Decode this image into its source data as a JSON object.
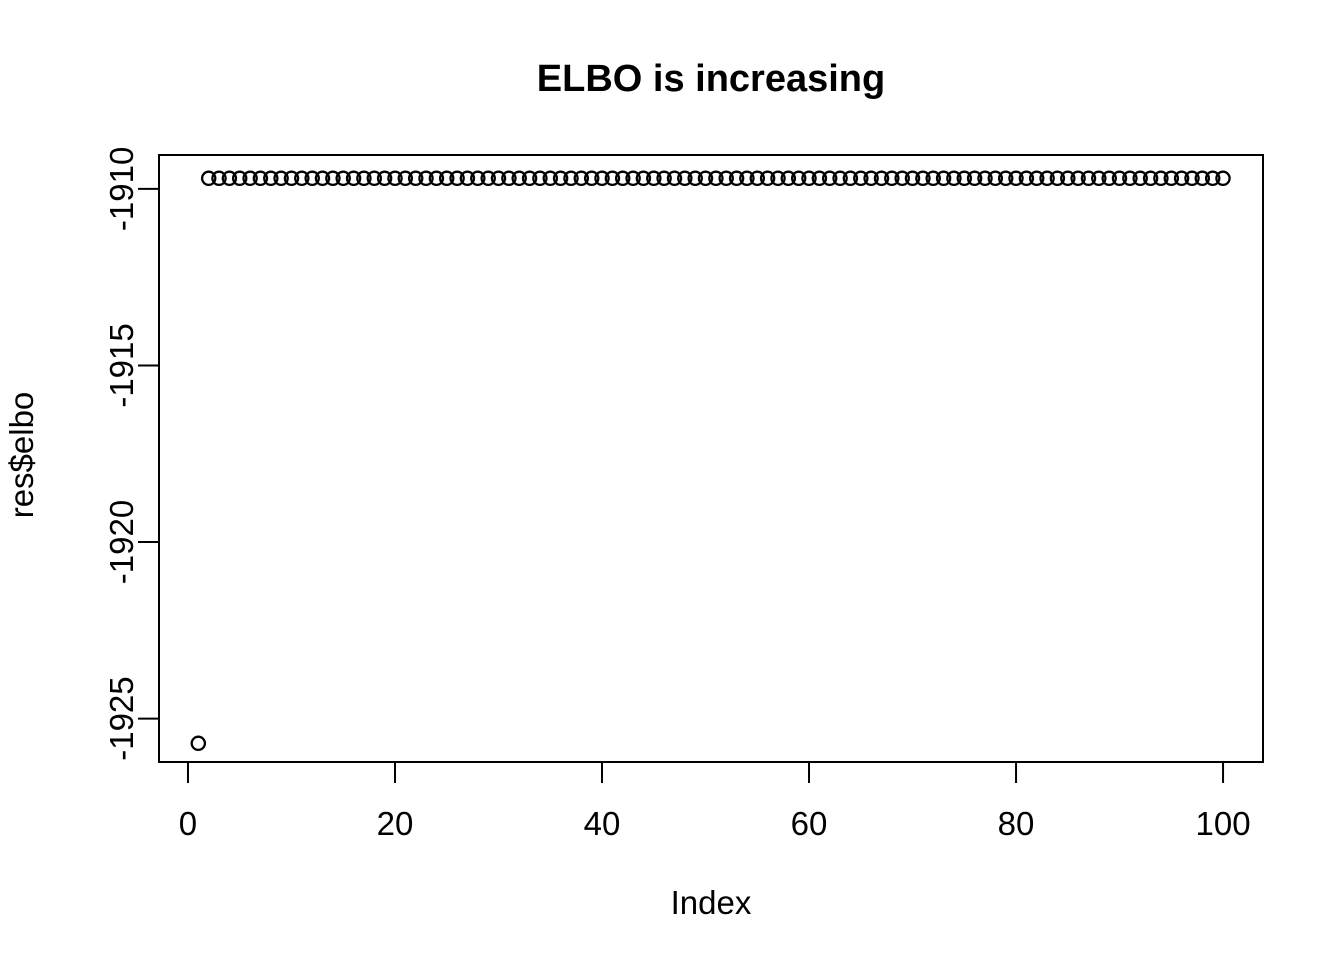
{
  "chart_data": {
    "type": "scatter",
    "title": "ELBO is increasing",
    "xlabel": "Index",
    "ylabel": "res$elbo",
    "marker": "open-circle",
    "grid": false,
    "fg_color": "#000000",
    "bg_color": "#ffffff",
    "x_ticks": [
      0,
      20,
      40,
      60,
      80,
      100
    ],
    "y_ticks": [
      -1910,
      -1915,
      -1920,
      -1925
    ],
    "xlim": [
      -2.8,
      103.86
    ],
    "ylim": [
      -1926.23,
      -1909.04
    ],
    "x": [
      1,
      2,
      3,
      4,
      5,
      6,
      7,
      8,
      9,
      10,
      11,
      12,
      13,
      14,
      15,
      16,
      17,
      18,
      19,
      20,
      21,
      22,
      23,
      24,
      25,
      26,
      27,
      28,
      29,
      30,
      31,
      32,
      33,
      34,
      35,
      36,
      37,
      38,
      39,
      40,
      41,
      42,
      43,
      44,
      45,
      46,
      47,
      48,
      49,
      50,
      51,
      52,
      53,
      54,
      55,
      56,
      57,
      58,
      59,
      60,
      61,
      62,
      63,
      64,
      65,
      66,
      67,
      68,
      69,
      70,
      71,
      72,
      73,
      74,
      75,
      76,
      77,
      78,
      79,
      80,
      81,
      82,
      83,
      84,
      85,
      86,
      87,
      88,
      89,
      90,
      91,
      92,
      93,
      94,
      95,
      96,
      97,
      98,
      99,
      100
    ],
    "y": [
      -1925.7,
      -1909.7,
      -1909.7,
      -1909.7,
      -1909.7,
      -1909.7,
      -1909.7,
      -1909.7,
      -1909.7,
      -1909.7,
      -1909.7,
      -1909.7,
      -1909.7,
      -1909.7,
      -1909.7,
      -1909.7,
      -1909.7,
      -1909.7,
      -1909.7,
      -1909.7,
      -1909.7,
      -1909.7,
      -1909.7,
      -1909.7,
      -1909.7,
      -1909.7,
      -1909.7,
      -1909.7,
      -1909.7,
      -1909.7,
      -1909.7,
      -1909.7,
      -1909.7,
      -1909.7,
      -1909.7,
      -1909.7,
      -1909.7,
      -1909.7,
      -1909.7,
      -1909.7,
      -1909.7,
      -1909.7,
      -1909.7,
      -1909.7,
      -1909.7,
      -1909.7,
      -1909.7,
      -1909.7,
      -1909.7,
      -1909.7,
      -1909.7,
      -1909.7,
      -1909.7,
      -1909.7,
      -1909.7,
      -1909.7,
      -1909.7,
      -1909.7,
      -1909.7,
      -1909.7,
      -1909.7,
      -1909.7,
      -1909.7,
      -1909.7,
      -1909.7,
      -1909.7,
      -1909.7,
      -1909.7,
      -1909.7,
      -1909.7,
      -1909.7,
      -1909.7,
      -1909.7,
      -1909.7,
      -1909.7,
      -1909.7,
      -1909.7,
      -1909.7,
      -1909.7,
      -1909.7,
      -1909.7,
      -1909.7,
      -1909.7,
      -1909.7,
      -1909.7,
      -1909.7,
      -1909.7,
      -1909.7,
      -1909.7,
      -1909.7,
      -1909.7,
      -1909.7,
      -1909.7,
      -1909.7,
      -1909.7,
      -1909.7,
      -1909.7,
      -1909.7,
      -1909.7,
      -1909.7
    ]
  }
}
